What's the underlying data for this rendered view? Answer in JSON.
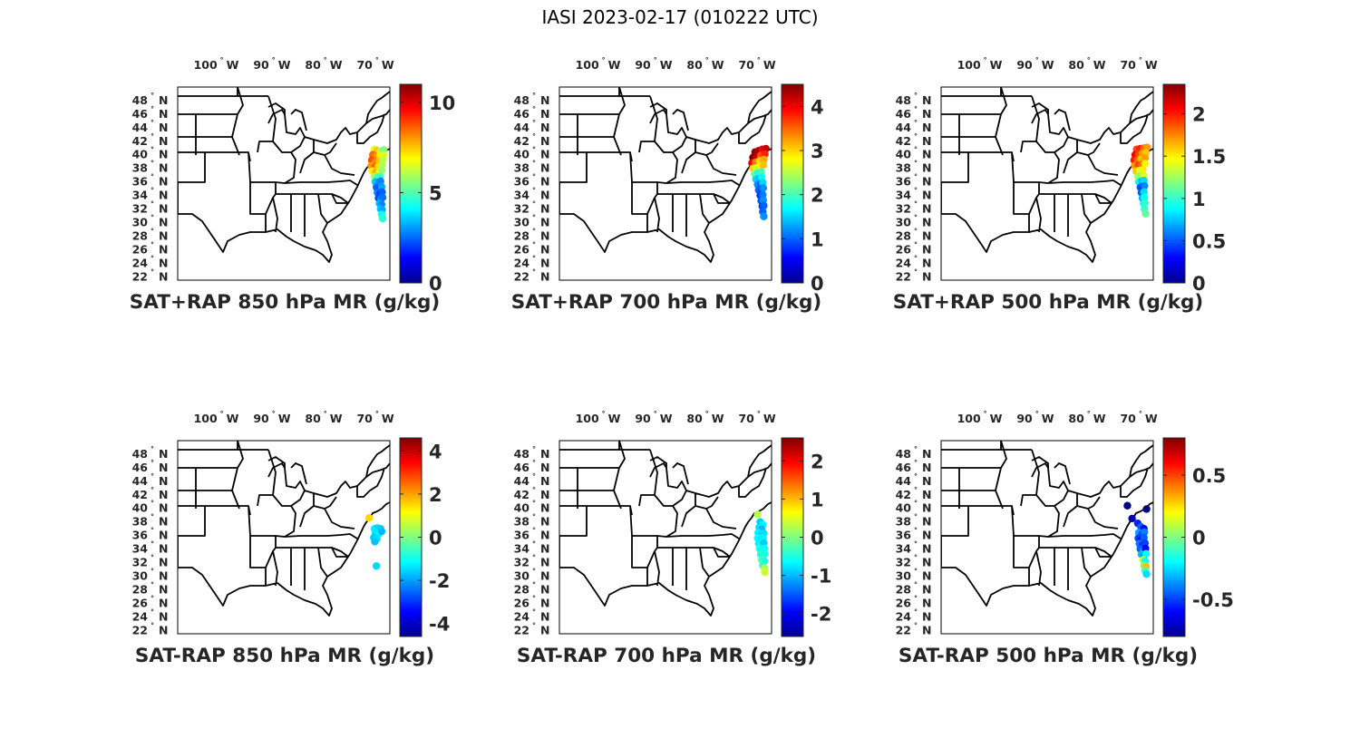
{
  "figure": {
    "title": "IASI 2023-02-17 (010222 UTC)"
  },
  "map_axes": {
    "lon_ticks": [
      {
        "lon": -100,
        "label": "100",
        "hemi": "W"
      },
      {
        "lon": -90,
        "label": "90",
        "hemi": "W"
      },
      {
        "lon": -80,
        "label": "80",
        "hemi": "W"
      },
      {
        "lon": -70,
        "label": "70",
        "hemi": "W"
      }
    ],
    "lat_ticks": [
      {
        "lat": 48,
        "label": "48",
        "hemi": "N"
      },
      {
        "lat": 46,
        "label": "46",
        "hemi": "N"
      },
      {
        "lat": 44,
        "label": "44",
        "hemi": "N"
      },
      {
        "lat": 42,
        "label": "42",
        "hemi": "N"
      },
      {
        "lat": 40,
        "label": "40",
        "hemi": "N"
      },
      {
        "lat": 38,
        "label": "38",
        "hemi": "N"
      },
      {
        "lat": 36,
        "label": "36",
        "hemi": "N"
      },
      {
        "lat": 34,
        "label": "34",
        "hemi": "N"
      },
      {
        "lat": 32,
        "label": "32",
        "hemi": "N"
      },
      {
        "lat": 30,
        "label": "30",
        "hemi": "N"
      },
      {
        "lat": 28,
        "label": "28",
        "hemi": "N"
      },
      {
        "lat": 26,
        "label": "26",
        "hemi": "N"
      },
      {
        "lat": 24,
        "label": "24",
        "hemi": "N"
      },
      {
        "lat": 22,
        "label": "22",
        "hemi": "N"
      }
    ]
  },
  "colormap": "jet",
  "chart_data": [
    {
      "type": "scatter",
      "title": "SAT+RAP 850 hPa MR (g/kg)",
      "clim": [
        0,
        11
      ],
      "colorbar_ticks": [
        {
          "v": 0,
          "label": "0"
        },
        {
          "v": 5,
          "label": "5"
        },
        {
          "v": 10,
          "label": "10"
        }
      ],
      "points": [
        [
          -70.0,
          40.8,
          6.5
        ],
        [
          -69.5,
          40.6,
          7.5
        ],
        [
          -68.8,
          40.5,
          6.0
        ],
        [
          -68.2,
          40.7,
          5.5
        ],
        [
          -70.3,
          40.0,
          8.5
        ],
        [
          -69.6,
          39.8,
          8.0
        ],
        [
          -68.9,
          39.9,
          7.0
        ],
        [
          -68.2,
          40.0,
          6.5
        ],
        [
          -70.5,
          39.2,
          8.8
        ],
        [
          -69.8,
          39.0,
          8.2
        ],
        [
          -69.0,
          39.1,
          7.5
        ],
        [
          -68.3,
          39.3,
          6.2
        ],
        [
          -70.6,
          38.4,
          8.0
        ],
        [
          -69.9,
          38.2,
          8.6
        ],
        [
          -69.2,
          38.3,
          7.2
        ],
        [
          -68.5,
          38.5,
          6.0
        ],
        [
          -70.4,
          37.6,
          7.0
        ],
        [
          -69.7,
          37.4,
          7.8
        ],
        [
          -69.0,
          37.5,
          6.8
        ],
        [
          -68.6,
          37.7,
          5.8
        ],
        [
          -70.0,
          36.8,
          6.0
        ],
        [
          -69.4,
          36.7,
          5.0
        ],
        [
          -68.9,
          36.8,
          4.8
        ],
        [
          -69.8,
          36.0,
          3.5
        ],
        [
          -69.2,
          35.9,
          3.0
        ],
        [
          -68.8,
          36.1,
          2.8
        ],
        [
          -69.6,
          35.2,
          2.5
        ],
        [
          -69.0,
          35.1,
          2.2
        ],
        [
          -68.6,
          35.3,
          3.2
        ],
        [
          -69.4,
          34.4,
          2.8
        ],
        [
          -68.9,
          34.3,
          2.0
        ],
        [
          -68.5,
          34.5,
          2.4
        ],
        [
          -69.2,
          33.6,
          2.2
        ],
        [
          -68.7,
          33.5,
          3.0
        ],
        [
          -68.4,
          33.7,
          2.6
        ],
        [
          -69.0,
          32.8,
          3.4
        ],
        [
          -68.6,
          32.7,
          2.8
        ],
        [
          -68.8,
          32.0,
          3.6
        ],
        [
          -68.5,
          31.9,
          3.2
        ],
        [
          -68.6,
          31.2,
          4.2
        ],
        [
          -68.4,
          30.6,
          4.6
        ]
      ]
    },
    {
      "type": "scatter",
      "title": "SAT+RAP 700 hPa MR (g/kg)",
      "clim": [
        0,
        4.5
      ],
      "colorbar_ticks": [
        {
          "v": 0,
          "label": "0"
        },
        {
          "v": 1,
          "label": "1"
        },
        {
          "v": 2,
          "label": "2"
        },
        {
          "v": 3,
          "label": "3"
        },
        {
          "v": 4,
          "label": "4"
        }
      ],
      "points": [
        [
          -70.2,
          40.4,
          4.4
        ],
        [
          -69.5,
          40.6,
          4.3
        ],
        [
          -68.8,
          40.8,
          4.0
        ],
        [
          -68.1,
          40.9,
          4.2
        ],
        [
          -70.6,
          39.6,
          4.5
        ],
        [
          -69.9,
          39.7,
          4.2
        ],
        [
          -69.1,
          39.9,
          3.6
        ],
        [
          -68.3,
          40.1,
          3.8
        ],
        [
          -70.8,
          38.8,
          4.0
        ],
        [
          -70.1,
          38.9,
          3.4
        ],
        [
          -69.3,
          39.1,
          3.0
        ],
        [
          -68.5,
          39.3,
          3.2
        ],
        [
          -70.6,
          38.0,
          3.0
        ],
        [
          -69.9,
          38.1,
          2.6
        ],
        [
          -69.2,
          38.3,
          2.8
        ],
        [
          -68.6,
          38.5,
          3.1
        ],
        [
          -70.3,
          37.2,
          2.2
        ],
        [
          -69.6,
          37.3,
          1.8
        ],
        [
          -69.0,
          37.5,
          2.0
        ],
        [
          -70.0,
          36.4,
          1.5
        ],
        [
          -69.4,
          36.5,
          1.4
        ],
        [
          -68.9,
          36.7,
          1.7
        ],
        [
          -69.7,
          35.6,
          1.2
        ],
        [
          -69.1,
          35.7,
          1.0
        ],
        [
          -68.7,
          35.9,
          1.5
        ],
        [
          -69.5,
          34.8,
          1.0
        ],
        [
          -68.9,
          34.9,
          0.9
        ],
        [
          -68.6,
          35.1,
          1.2
        ],
        [
          -69.2,
          34.0,
          0.8
        ],
        [
          -68.7,
          34.1,
          1.1
        ],
        [
          -69.0,
          33.2,
          0.9
        ],
        [
          -68.6,
          33.3,
          1.2
        ],
        [
          -68.8,
          32.4,
          0.8
        ],
        [
          -68.5,
          32.5,
          1.0
        ],
        [
          -68.7,
          31.6,
          1.0
        ],
        [
          -68.5,
          30.9,
          1.2
        ]
      ]
    },
    {
      "type": "scatter",
      "title": "SAT+RAP 500 hPa MR (g/kg)",
      "clim": [
        0,
        2.35
      ],
      "colorbar_ticks": [
        {
          "v": 0,
          "label": "0"
        },
        {
          "v": 0.5,
          "label": "0.5"
        },
        {
          "v": 1,
          "label": "1"
        },
        {
          "v": 1.5,
          "label": "1.5"
        },
        {
          "v": 2,
          "label": "2"
        }
      ],
      "points": [
        [
          -70.2,
          40.8,
          1.9
        ],
        [
          -69.5,
          40.9,
          2.0
        ],
        [
          -68.8,
          41.0,
          1.8
        ],
        [
          -68.2,
          41.1,
          1.7
        ],
        [
          -70.5,
          40.0,
          2.1
        ],
        [
          -69.8,
          40.1,
          1.9
        ],
        [
          -69.1,
          40.2,
          1.7
        ],
        [
          -68.4,
          40.3,
          1.6
        ],
        [
          -70.7,
          39.2,
          2.0
        ],
        [
          -70.0,
          39.3,
          1.8
        ],
        [
          -69.3,
          39.4,
          1.6
        ],
        [
          -68.6,
          39.5,
          1.7
        ],
        [
          -70.6,
          38.4,
          1.7
        ],
        [
          -69.9,
          38.5,
          1.9
        ],
        [
          -69.2,
          38.6,
          1.8
        ],
        [
          -68.6,
          38.7,
          1.5
        ],
        [
          -70.3,
          37.6,
          1.6
        ],
        [
          -69.6,
          37.7,
          1.4
        ],
        [
          -69.0,
          37.8,
          1.5
        ],
        [
          -70.0,
          36.8,
          1.3
        ],
        [
          -69.4,
          36.9,
          1.2
        ],
        [
          -68.9,
          37.0,
          1.4
        ],
        [
          -69.8,
          36.0,
          0.9
        ],
        [
          -69.2,
          36.1,
          0.7
        ],
        [
          -68.8,
          36.2,
          0.8
        ],
        [
          -69.5,
          35.2,
          0.5
        ],
        [
          -69.0,
          35.3,
          0.4
        ],
        [
          -68.7,
          35.4,
          0.6
        ],
        [
          -69.3,
          34.4,
          0.5
        ],
        [
          -68.8,
          34.5,
          0.8
        ],
        [
          -69.1,
          33.6,
          0.7
        ],
        [
          -68.7,
          33.7,
          0.9
        ],
        [
          -68.9,
          32.8,
          0.9
        ],
        [
          -68.6,
          32.9,
          1.0
        ],
        [
          -68.7,
          32.0,
          1.0
        ],
        [
          -68.5,
          31.3,
          1.1
        ]
      ]
    },
    {
      "type": "scatter",
      "title": "SAT-RAP 850 hPa MR (g/kg)",
      "clim": [
        -4.6,
        4.6
      ],
      "colorbar_ticks": [
        {
          "v": -4,
          "label": "-4"
        },
        {
          "v": -2,
          "label": "-2"
        },
        {
          "v": 0,
          "label": "0"
        },
        {
          "v": 2,
          "label": "2"
        },
        {
          "v": 4,
          "label": "4"
        }
      ],
      "points": [
        [
          -71.0,
          38.6,
          1.5
        ],
        [
          -70.0,
          37.0,
          -1.3
        ],
        [
          -69.4,
          37.1,
          -1.5
        ],
        [
          -68.8,
          37.0,
          -1.6
        ],
        [
          -69.8,
          36.5,
          -1.4
        ],
        [
          -69.2,
          36.2,
          -1.2
        ],
        [
          -68.6,
          36.6,
          -1.8
        ],
        [
          -70.1,
          35.7,
          -1.6
        ],
        [
          -69.5,
          35.5,
          -1.4
        ],
        [
          -69.9,
          35.1,
          -1.7
        ],
        [
          -69.6,
          31.5,
          -1.5
        ]
      ]
    },
    {
      "type": "scatter",
      "title": "SAT-RAP 700 hPa MR (g/kg)",
      "clim": [
        -2.6,
        2.6
      ],
      "colorbar_ticks": [
        {
          "v": -2,
          "label": "-2"
        },
        {
          "v": -1,
          "label": "-1"
        },
        {
          "v": 0,
          "label": "0"
        },
        {
          "v": 1,
          "label": "1"
        },
        {
          "v": 2,
          "label": "2"
        }
      ],
      "points": [
        [
          -69.7,
          39.1,
          0.3
        ],
        [
          -69.2,
          38.0,
          -0.9
        ],
        [
          -68.7,
          37.6,
          -0.7
        ],
        [
          -69.4,
          37.2,
          -0.8
        ],
        [
          -68.9,
          36.9,
          -1.0
        ],
        [
          -69.6,
          36.4,
          -0.7
        ],
        [
          -69.0,
          36.1,
          -0.9
        ],
        [
          -68.5,
          36.3,
          -0.8
        ],
        [
          -69.7,
          35.6,
          -0.6
        ],
        [
          -69.1,
          35.4,
          -0.8
        ],
        [
          -68.6,
          35.6,
          -0.7
        ],
        [
          -69.5,
          34.8,
          -0.7
        ],
        [
          -68.9,
          34.6,
          -0.6
        ],
        [
          -68.5,
          34.9,
          -0.9
        ],
        [
          -69.3,
          34.0,
          -0.5
        ],
        [
          -68.8,
          33.8,
          -0.7
        ],
        [
          -68.4,
          34.1,
          -0.6
        ],
        [
          -69.1,
          33.2,
          -0.4
        ],
        [
          -68.6,
          33.0,
          -0.6
        ],
        [
          -68.3,
          33.3,
          -0.5
        ],
        [
          -68.9,
          32.4,
          -0.3
        ],
        [
          -68.4,
          32.2,
          -0.5
        ],
        [
          -68.7,
          31.6,
          -0.4
        ],
        [
          -68.4,
          31.2,
          0.2
        ],
        [
          -68.3,
          30.6,
          0.4
        ]
      ]
    },
    {
      "type": "scatter",
      "title": "SAT-RAP 500 hPa MR (g/kg)",
      "clim": [
        -0.8,
        0.8
      ],
      "colorbar_ticks": [
        {
          "v": -0.5,
          "label": "-0.5"
        },
        {
          "v": 0,
          "label": "0"
        },
        {
          "v": 0.5,
          "label": "0.5"
        }
      ],
      "points": [
        [
          -72.0,
          40.4,
          -0.8
        ],
        [
          -68.3,
          39.9,
          -0.8
        ],
        [
          -71.1,
          38.5,
          -0.75
        ],
        [
          -70.0,
          37.8,
          -0.55
        ],
        [
          -69.4,
          37.3,
          -0.45
        ],
        [
          -68.8,
          37.0,
          -0.6
        ],
        [
          -69.8,
          36.4,
          -0.35
        ],
        [
          -69.2,
          36.2,
          -0.5
        ],
        [
          -68.7,
          36.5,
          -0.4
        ],
        [
          -69.9,
          35.6,
          -0.5
        ],
        [
          -69.3,
          35.4,
          -0.6
        ],
        [
          -68.8,
          35.7,
          -0.45
        ],
        [
          -69.7,
          34.8,
          -0.4
        ],
        [
          -69.1,
          34.6,
          -0.55
        ],
        [
          -68.6,
          34.9,
          -0.5
        ],
        [
          -69.5,
          34.0,
          -0.45
        ],
        [
          -68.9,
          33.8,
          -0.35
        ],
        [
          -68.5,
          34.1,
          -0.6
        ],
        [
          -69.3,
          33.2,
          -0.3
        ],
        [
          -68.8,
          33.0,
          -0.4
        ],
        [
          -68.4,
          33.3,
          -0.2
        ],
        [
          -69.0,
          32.4,
          0.1
        ],
        [
          -68.6,
          32.2,
          -0.2
        ],
        [
          -68.8,
          31.6,
          0.0
        ],
        [
          -68.4,
          31.4,
          0.3
        ],
        [
          -68.6,
          30.8,
          -0.1
        ],
        [
          -68.3,
          30.3,
          -0.25
        ]
      ]
    }
  ]
}
